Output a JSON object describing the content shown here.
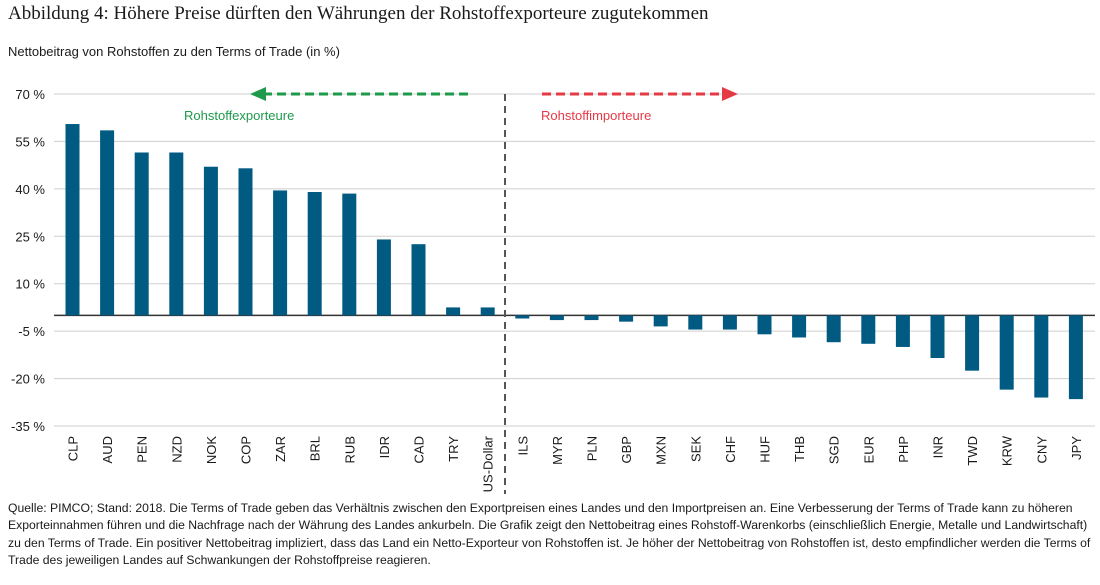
{
  "title": "Abbildung 4: Höhere Preise dürften den Währungen der Rohstoffexporteure zugutekommen",
  "subtitle": "Nettobeitrag von Rohstoffen zu den Terms of Trade (in %)",
  "note": "Quelle: PIMCO; Stand: 2018. Die Terms of Trade geben das Verhältnis zwischen den Exportpreisen eines Landes und den Importpreisen an. Eine Verbesserung der Terms of Trade kann zu höheren Exporteinnahmen führen und die Nachfrage nach der Währung des Landes ankurbeln. Die Grafik zeigt den Nettobeitrag eines Rohstoff-Warenkorbs (einschließlich Energie, Metalle und Landwirtschaft) zu den Terms of Trade. Ein positiver Nettobeitrag impliziert, dass das Land ein Netto-Exporteur von Rohstoffen ist. Je höher der Nettobeitrag von Rohstoffen ist, desto empfindlicher werden die Terms of Trade des jeweiligen Landes auf Schwankungen der Rohstoffpreise reagieren.",
  "chart_data": {
    "type": "bar",
    "categories": [
      "CLP",
      "AUD",
      "PEN",
      "NZD",
      "NOK",
      "COP",
      "ZAR",
      "BRL",
      "RUB",
      "IDR",
      "CAD",
      "TRY",
      "US-Dollar",
      "ILS",
      "MYR",
      "PLN",
      "GBP",
      "MXN",
      "SEK",
      "CHF",
      "HUF",
      "THB",
      "SGD",
      "EUR",
      "PHP",
      "INR",
      "TWD",
      "KRW",
      "CNY",
      "JPY"
    ],
    "values": [
      60.5,
      58.5,
      51.5,
      51.5,
      47,
      46.5,
      39.5,
      39,
      38.5,
      24,
      22.5,
      2.5,
      2.5,
      -1,
      -1.5,
      -1.5,
      -2,
      -3.5,
      -4.5,
      -4.5,
      -6,
      -7,
      -8.5,
      -9,
      -10,
      -13.5,
      -17.5,
      -23.5,
      -26,
      -26.5
    ],
    "yticks": [
      70,
      55,
      40,
      25,
      10,
      -5,
      -20,
      -35
    ],
    "ytick_labels": [
      "70 %",
      "55 %",
      "40 %",
      "25 %",
      "10 %",
      "-5 %",
      "-20 %",
      "-35 %"
    ],
    "ylim": [
      -35,
      70
    ],
    "grid": true,
    "bar_color": "#005a82",
    "annotations": [
      {
        "text": "Rohstoffexporteure",
        "color": "#1e9a4b",
        "arrow": "left"
      },
      {
        "text": "Rohstoffimporteure",
        "color": "#e63946",
        "arrow": "right"
      }
    ],
    "divider": "dashed vertical line between exporters and importers"
  }
}
